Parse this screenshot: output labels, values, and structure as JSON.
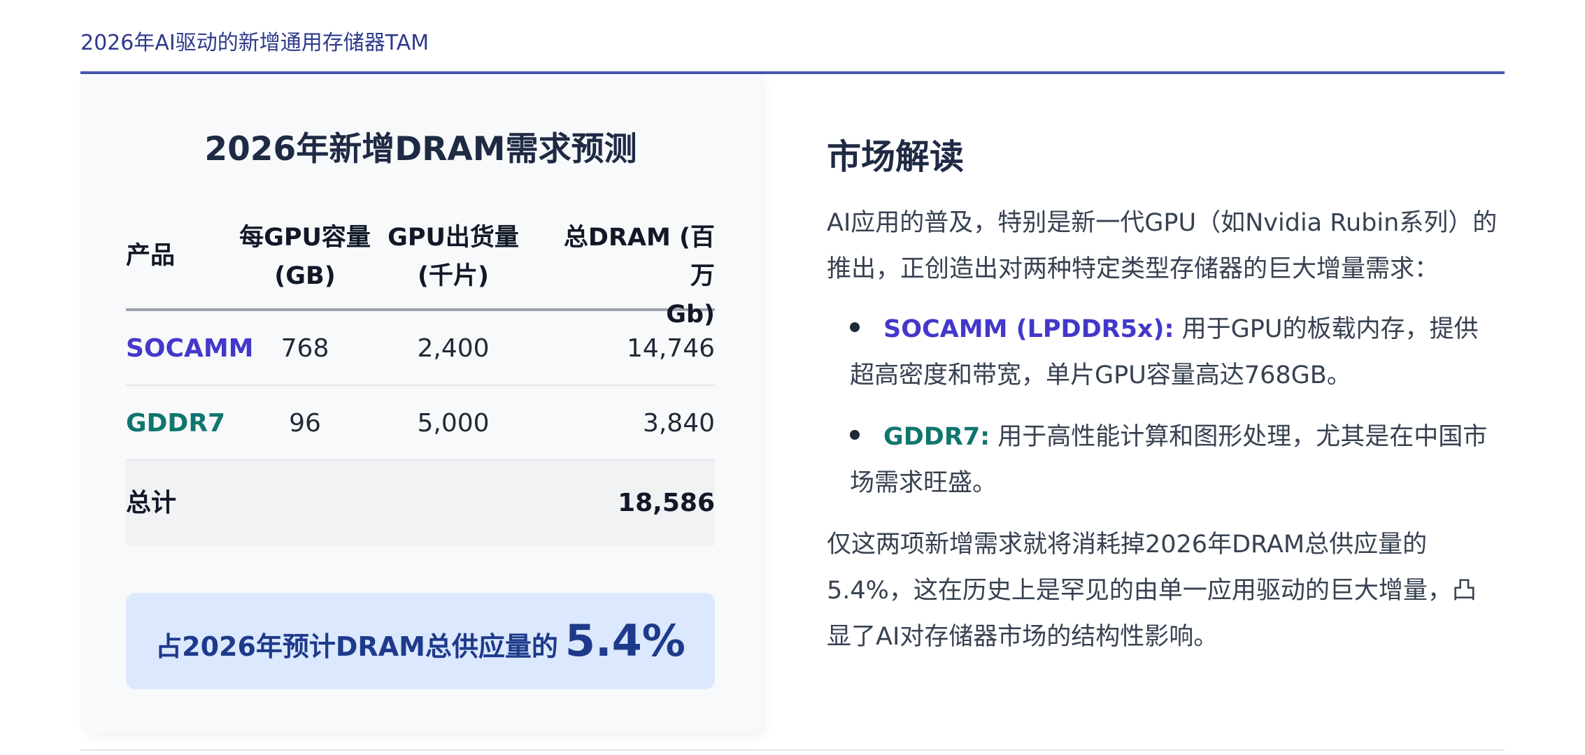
{
  "header": {
    "title": "2026年AI驱动的新增通用存储器TAM"
  },
  "card": {
    "title": "2026年新增DRAM需求预测",
    "columns": {
      "product": "产品",
      "capacity": "每GPU容量",
      "capacity_unit": "(GB)",
      "shipments": "GPU出货量",
      "shipments_unit": "(千片)",
      "total": "总DRAM (百万",
      "total_unit": "Gb)"
    },
    "rows": [
      {
        "product": "SOCAMM",
        "capacity": "768",
        "shipments": "2,400",
        "total": "14,746"
      },
      {
        "product": "GDDR7",
        "capacity": "96",
        "shipments": "5,000",
        "total": "3,840"
      }
    ],
    "total_row": {
      "label": "总计",
      "total": "18,586"
    },
    "highlight": {
      "text": "占2026年预计DRAM总供应量的",
      "value": "5.4%"
    }
  },
  "interpretation": {
    "heading": "市场解读",
    "intro": "AI应用的普及，特别是新一代GPU（如Nvidia Rubin系列）的推出，正创造出对两种特定类型存储器的巨大增量需求：",
    "bullets": [
      {
        "term": "SOCAMM (LPDDR5x):",
        "text": " 用于GPU的板载内存，提供超高密度和带宽，单片GPU容量高达768GB。"
      },
      {
        "term": "GDDR7:",
        "text": " 用于高性能计算和图形处理，尤其是在中国市场需求旺盛。"
      }
    ],
    "conclusion": "仅这两项新增需求就将消耗掉2026年DRAM总供应量的5.4%，这在历史上是罕见的由单一应用驱动的巨大增量，凸显了AI对存储器市场的结构性影响。"
  },
  "colors": {
    "accent": "#4655b0",
    "socamm": "#4338ca",
    "gddr7": "#0f766e",
    "highlight_bg": "#dbe8fd",
    "highlight_text": "#1e3a8a"
  }
}
